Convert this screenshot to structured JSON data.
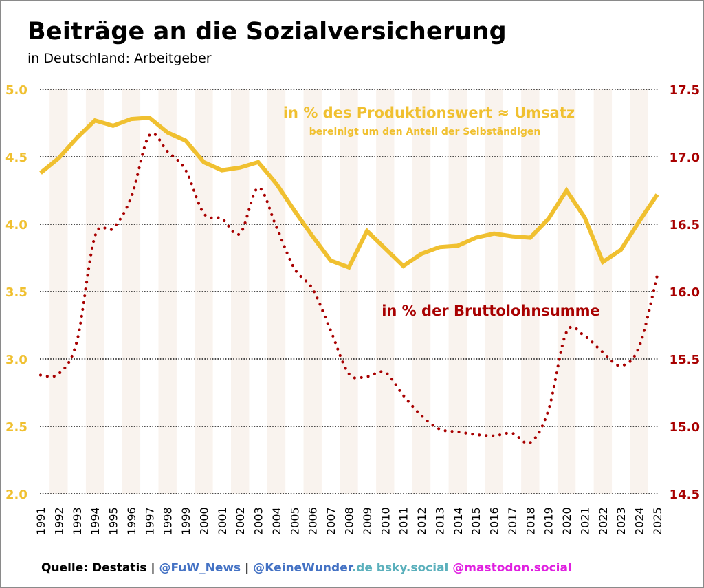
{
  "header": {
    "title": "Beiträge an die Sozialversicherung",
    "subtitle": "in Deutschland: Arbeitgeber"
  },
  "footer": {
    "source": "Quelle: Destatis",
    "sep1": " | ",
    "handle1": "@FuW_News",
    "sep2": " | ",
    "handle2": "@KeineWunder",
    "handle2_suffix": ".de",
    "bsky": " bsky.social",
    "mastodon": " @mastodon.social"
  },
  "colors": {
    "production_series": "#f0c030",
    "wage_series": "#a80000",
    "source_text": "#000000",
    "handle_blue": "#4472c4",
    "bsky_teal": "#5bb0bc",
    "mastodon_magenta": "#e020e0",
    "band_fill": "#f9f3ee"
  },
  "chart_data": {
    "type": "line",
    "title": "Beiträge an die Sozialversicherung",
    "subtitle": "in Deutschland: Arbeitgeber",
    "xlabel": "",
    "ylabel_left": "",
    "ylabel_right": "",
    "grid": true,
    "x": [
      1991,
      1992,
      1993,
      1994,
      1995,
      1996,
      1997,
      1998,
      1999,
      2000,
      2001,
      2002,
      2003,
      2004,
      2005,
      2006,
      2007,
      2008,
      2009,
      2010,
      2011,
      2012,
      2013,
      2014,
      2015,
      2016,
      2017,
      2018,
      2019,
      2020,
      2021,
      2022,
      2023,
      2024,
      2025
    ],
    "x_tick_labels": [
      "1991",
      "1992",
      "1993",
      "1994",
      "1995",
      "1996",
      "1997",
      "1998",
      "1999",
      "2000",
      "2001",
      "2002",
      "2003",
      "2004",
      "2005",
      "2006",
      "2007",
      "2008",
      "2009",
      "2010",
      "2011",
      "2012",
      "2013",
      "2014",
      "2015",
      "2016",
      "2017",
      "2018",
      "2019",
      "2020",
      "2021",
      "2022",
      "2023",
      "2024",
      "2025"
    ],
    "y_left": {
      "range": [
        2.0,
        5.0
      ],
      "ticks": [
        "2.0",
        "2.5",
        "3.0",
        "3.5",
        "4.0",
        "4.5",
        "5.0"
      ],
      "tick_values": [
        2.0,
        2.5,
        3.0,
        3.5,
        4.0,
        4.5,
        5.0
      ]
    },
    "y_right": {
      "range": [
        14.5,
        17.5
      ],
      "ticks": [
        "14.5",
        "15.0",
        "15.5",
        "16.0",
        "16.5",
        "17.0",
        "17.5"
      ],
      "tick_values": [
        14.5,
        15.0,
        15.5,
        16.0,
        16.5,
        17.0,
        17.5
      ]
    },
    "series": [
      {
        "name": "in % des Produktionswert ≈ Umsatz",
        "note": "bereinigt um den Anteil der Selbständigen",
        "axis": "left",
        "style": "solid",
        "values": [
          4.38,
          4.49,
          4.64,
          4.77,
          4.73,
          4.78,
          4.79,
          4.68,
          4.62,
          4.46,
          4.4,
          4.42,
          4.46,
          4.3,
          4.1,
          3.91,
          3.73,
          3.68,
          3.95,
          3.82,
          3.69,
          3.78,
          3.83,
          3.84,
          3.9,
          3.93,
          3.91,
          3.9,
          4.04,
          4.25,
          4.05,
          3.72,
          3.81,
          4.02,
          4.22
        ]
      },
      {
        "name": "in % der Bruttolohnsumme",
        "axis": "right",
        "style": "dotted",
        "values": [
          15.38,
          15.39,
          15.63,
          16.41,
          16.47,
          16.7,
          17.16,
          17.04,
          16.9,
          16.58,
          16.54,
          16.43,
          16.77,
          16.48,
          16.17,
          16.02,
          15.71,
          15.39,
          15.37,
          15.4,
          15.23,
          15.08,
          14.98,
          14.96,
          14.94,
          14.93,
          14.95,
          14.88,
          15.12,
          15.7,
          15.67,
          15.55,
          15.45,
          15.59,
          16.12
        ]
      }
    ],
    "annotations": [
      {
        "text": "in % des Produktionswert ≈ Umsatz",
        "series": 0,
        "placement": "top-center"
      },
      {
        "text": "bereinigt um den Anteil der Selbständigen",
        "series": 0,
        "placement": "top-center"
      },
      {
        "text": "in % der Bruttolohnsumme",
        "series": 1,
        "placement": "middle-right"
      }
    ],
    "legend": "none (inline annotations)"
  }
}
